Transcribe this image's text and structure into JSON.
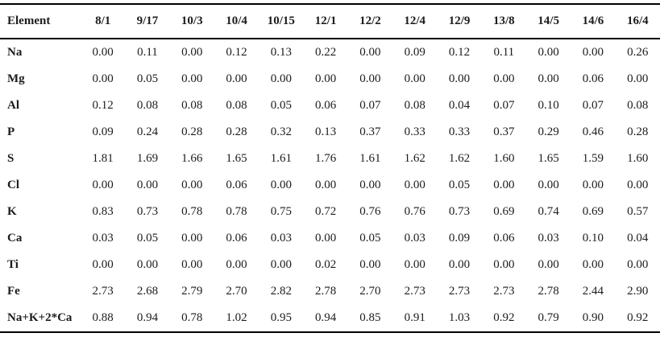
{
  "table": {
    "columns": [
      "Element",
      "8/1",
      "9/17",
      "10/3",
      "10/4",
      "10/15",
      "12/1",
      "12/2",
      "12/4",
      "12/9",
      "13/8",
      "14/5",
      "14/6",
      "16/4"
    ],
    "rows": [
      {
        "element": "Na",
        "values": [
          "0.00",
          "0.11",
          "0.00",
          "0.12",
          "0.13",
          "0.22",
          "0.00",
          "0.09",
          "0.12",
          "0.11",
          "0.00",
          "0.00",
          "0.26"
        ]
      },
      {
        "element": "Mg",
        "values": [
          "0.00",
          "0.05",
          "0.00",
          "0.00",
          "0.00",
          "0.00",
          "0.00",
          "0.00",
          "0.00",
          "0.00",
          "0.00",
          "0.06",
          "0.00"
        ]
      },
      {
        "element": "Al",
        "values": [
          "0.12",
          "0.08",
          "0.08",
          "0.08",
          "0.05",
          "0.06",
          "0.07",
          "0.08",
          "0.04",
          "0.07",
          "0.10",
          "0.07",
          "0.08"
        ]
      },
      {
        "element": "P",
        "values": [
          "0.09",
          "0.24",
          "0.28",
          "0.28",
          "0.32",
          "0.13",
          "0.37",
          "0.33",
          "0.33",
          "0.37",
          "0.29",
          "0.46",
          "0.28"
        ]
      },
      {
        "element": "S",
        "values": [
          "1.81",
          "1.69",
          "1.66",
          "1.65",
          "1.61",
          "1.76",
          "1.61",
          "1.62",
          "1.62",
          "1.60",
          "1.65",
          "1.59",
          "1.60"
        ]
      },
      {
        "element": "Cl",
        "values": [
          "0.00",
          "0.00",
          "0.00",
          "0.06",
          "0.00",
          "0.00",
          "0.00",
          "0.00",
          "0.05",
          "0.00",
          "0.00",
          "0.00",
          "0.00"
        ]
      },
      {
        "element": "K",
        "values": [
          "0.83",
          "0.73",
          "0.78",
          "0.78",
          "0.75",
          "0.72",
          "0.76",
          "0.76",
          "0.73",
          "0.69",
          "0.74",
          "0.69",
          "0.57"
        ]
      },
      {
        "element": "Ca",
        "values": [
          "0.03",
          "0.05",
          "0.00",
          "0.06",
          "0.03",
          "0.00",
          "0.05",
          "0.03",
          "0.09",
          "0.06",
          "0.03",
          "0.10",
          "0.04"
        ]
      },
      {
        "element": "Ti",
        "values": [
          "0.00",
          "0.00",
          "0.00",
          "0.00",
          "0.00",
          "0.02",
          "0.00",
          "0.00",
          "0.00",
          "0.00",
          "0.00",
          "0.00",
          "0.00"
        ]
      },
      {
        "element": "Fe",
        "values": [
          "2.73",
          "2.68",
          "2.79",
          "2.70",
          "2.82",
          "2.78",
          "2.70",
          "2.73",
          "2.73",
          "2.73",
          "2.78",
          "2.44",
          "2.90"
        ]
      },
      {
        "element": "Na+K+2*Ca",
        "values": [
          "0.88",
          "0.94",
          "0.78",
          "1.02",
          "0.95",
          "0.94",
          "0.85",
          "0.91",
          "1.03",
          "0.92",
          "0.79",
          "0.90",
          "0.92"
        ]
      }
    ],
    "text_color": "#1c1c1c",
    "border_color": "#000000"
  },
  "chart_data": {
    "type": "table",
    "title": "",
    "categories": [
      "8/1",
      "9/17",
      "10/3",
      "10/4",
      "10/15",
      "12/1",
      "12/2",
      "12/4",
      "12/9",
      "13/8",
      "14/5",
      "14/6",
      "16/4"
    ],
    "series": [
      {
        "name": "Na",
        "values": [
          0.0,
          0.11,
          0.0,
          0.12,
          0.13,
          0.22,
          0.0,
          0.09,
          0.12,
          0.11,
          0.0,
          0.0,
          0.26
        ]
      },
      {
        "name": "Mg",
        "values": [
          0.0,
          0.05,
          0.0,
          0.0,
          0.0,
          0.0,
          0.0,
          0.0,
          0.0,
          0.0,
          0.0,
          0.06,
          0.0
        ]
      },
      {
        "name": "Al",
        "values": [
          0.12,
          0.08,
          0.08,
          0.08,
          0.05,
          0.06,
          0.07,
          0.08,
          0.04,
          0.07,
          0.1,
          0.07,
          0.08
        ]
      },
      {
        "name": "P",
        "values": [
          0.09,
          0.24,
          0.28,
          0.28,
          0.32,
          0.13,
          0.37,
          0.33,
          0.33,
          0.37,
          0.29,
          0.46,
          0.28
        ]
      },
      {
        "name": "S",
        "values": [
          1.81,
          1.69,
          1.66,
          1.65,
          1.61,
          1.76,
          1.61,
          1.62,
          1.62,
          1.6,
          1.65,
          1.59,
          1.6
        ]
      },
      {
        "name": "Cl",
        "values": [
          0.0,
          0.0,
          0.0,
          0.06,
          0.0,
          0.0,
          0.0,
          0.0,
          0.05,
          0.0,
          0.0,
          0.0,
          0.0
        ]
      },
      {
        "name": "K",
        "values": [
          0.83,
          0.73,
          0.78,
          0.78,
          0.75,
          0.72,
          0.76,
          0.76,
          0.73,
          0.69,
          0.74,
          0.69,
          0.57
        ]
      },
      {
        "name": "Ca",
        "values": [
          0.03,
          0.05,
          0.0,
          0.06,
          0.03,
          0.0,
          0.05,
          0.03,
          0.09,
          0.06,
          0.03,
          0.1,
          0.04
        ]
      },
      {
        "name": "Ti",
        "values": [
          0.0,
          0.0,
          0.0,
          0.0,
          0.0,
          0.02,
          0.0,
          0.0,
          0.0,
          0.0,
          0.0,
          0.0,
          0.0
        ]
      },
      {
        "name": "Fe",
        "values": [
          2.73,
          2.68,
          2.79,
          2.7,
          2.82,
          2.78,
          2.7,
          2.73,
          2.73,
          2.73,
          2.78,
          2.44,
          2.9
        ]
      },
      {
        "name": "Na+K+2*Ca",
        "values": [
          0.88,
          0.94,
          0.78,
          1.02,
          0.95,
          0.94,
          0.85,
          0.91,
          1.03,
          0.92,
          0.79,
          0.9,
          0.92
        ]
      }
    ]
  }
}
